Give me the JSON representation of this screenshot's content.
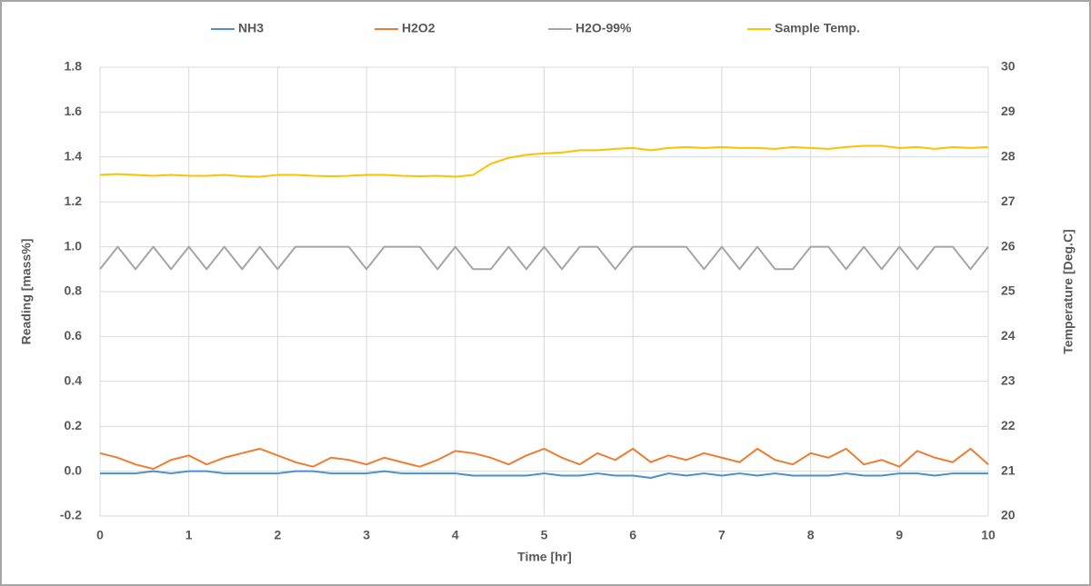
{
  "chart_data": {
    "type": "line",
    "x_label": "Time [hr]",
    "y_label": "Reading [mass%]",
    "y2_label": "Temperature [Deg.C]",
    "x": [
      0,
      0.2,
      0.4,
      0.6,
      0.8,
      1,
      1.2,
      1.4,
      1.6,
      1.8,
      2,
      2.2,
      2.4,
      2.6,
      2.8,
      3,
      3.2,
      3.4,
      3.6,
      3.8,
      4,
      4.2,
      4.4,
      4.6,
      4.8,
      5,
      5.2,
      5.4,
      5.6,
      5.8,
      6,
      6.2,
      6.4,
      6.6,
      6.8,
      7,
      7.2,
      7.4,
      7.6,
      7.8,
      8,
      8.2,
      8.4,
      8.6,
      8.8,
      9,
      9.2,
      9.4,
      9.6,
      9.8,
      10
    ],
    "xlim": [
      0,
      10
    ],
    "xticks": [
      0,
      1,
      2,
      3,
      4,
      5,
      6,
      7,
      8,
      9,
      10
    ],
    "ylim": [
      -0.2,
      1.8
    ],
    "yticks": [
      -0.2,
      {
        "value": 0,
        "label": "0.0"
      },
      0.2,
      0.4,
      0.6,
      0.8,
      {
        "value": 1,
        "label": "1.0"
      },
      1.2,
      1.4,
      1.6,
      1.8
    ],
    "y2lim": [
      20,
      30
    ],
    "y2ticks": [
      20,
      21,
      22,
      23,
      24,
      25,
      26,
      27,
      28,
      29,
      30
    ],
    "grid": true,
    "legend": "top",
    "series": [
      {
        "name": "NH3",
        "color": "#4a8fd1",
        "values": [
          -0.01,
          -0.01,
          -0.01,
          0,
          -0.01,
          0,
          0,
          -0.01,
          -0.01,
          -0.01,
          -0.01,
          0,
          0,
          -0.01,
          -0.01,
          -0.01,
          0,
          -0.01,
          -0.01,
          -0.01,
          -0.01,
          -0.02,
          -0.02,
          -0.02,
          -0.02,
          -0.01,
          -0.02,
          -0.02,
          -0.01,
          -0.02,
          -0.02,
          -0.03,
          -0.01,
          -0.02,
          -0.01,
          -0.02,
          -0.01,
          -0.02,
          -0.01,
          -0.02,
          -0.02,
          -0.02,
          -0.01,
          -0.02,
          -0.02,
          -0.01,
          -0.01,
          -0.02,
          -0.01,
          -0.01,
          -0.01
        ]
      },
      {
        "name": "H2O2",
        "color": "#ed7d31",
        "values": [
          0.08,
          0.06,
          0.03,
          0.01,
          0.05,
          0.07,
          0.03,
          0.06,
          0.08,
          0.1,
          0.07,
          0.04,
          0.02,
          0.06,
          0.05,
          0.03,
          0.06,
          0.04,
          0.02,
          0.05,
          0.09,
          0.08,
          0.06,
          0.03,
          0.07,
          0.1,
          0.06,
          0.03,
          0.08,
          0.05,
          0.1,
          0.04,
          0.07,
          0.05,
          0.08,
          0.06,
          0.04,
          0.1,
          0.05,
          0.03,
          0.08,
          0.06,
          0.1,
          0.03,
          0.05,
          0.02,
          0.09,
          0.06,
          0.04,
          0.1,
          0.03
        ]
      },
      {
        "name": "H2O-99%",
        "color": "#a5a5a5",
        "values": [
          0.9,
          1,
          0.9,
          1,
          0.9,
          1,
          0.9,
          1,
          0.9,
          1,
          0.9,
          1,
          1,
          1,
          1,
          0.9,
          1,
          1,
          1,
          0.9,
          1,
          0.9,
          0.9,
          1,
          0.9,
          1,
          0.9,
          1,
          1,
          0.9,
          1,
          1,
          1,
          1,
          0.9,
          1,
          0.9,
          1,
          0.9,
          0.9,
          1,
          1,
          0.9,
          1,
          0.9,
          1,
          0.9,
          1,
          1,
          0.9,
          1
        ]
      },
      {
        "name": "Sample Temp.",
        "color": "#ffc000",
        "axis": "y2",
        "values": [
          27.6,
          27.62,
          27.6,
          27.58,
          27.6,
          27.58,
          27.58,
          27.6,
          27.57,
          27.56,
          27.6,
          27.6,
          27.58,
          27.57,
          27.58,
          27.6,
          27.6,
          27.58,
          27.57,
          27.58,
          27.56,
          27.6,
          27.85,
          27.98,
          28.05,
          28.08,
          28.1,
          28.15,
          28.15,
          28.18,
          28.2,
          28.15,
          28.2,
          28.22,
          28.2,
          28.22,
          28.2,
          28.2,
          28.18,
          28.22,
          28.2,
          28.18,
          28.22,
          28.25,
          28.25,
          28.2,
          28.22,
          28.18,
          28.22,
          28.2,
          28.22
        ]
      }
    ]
  }
}
